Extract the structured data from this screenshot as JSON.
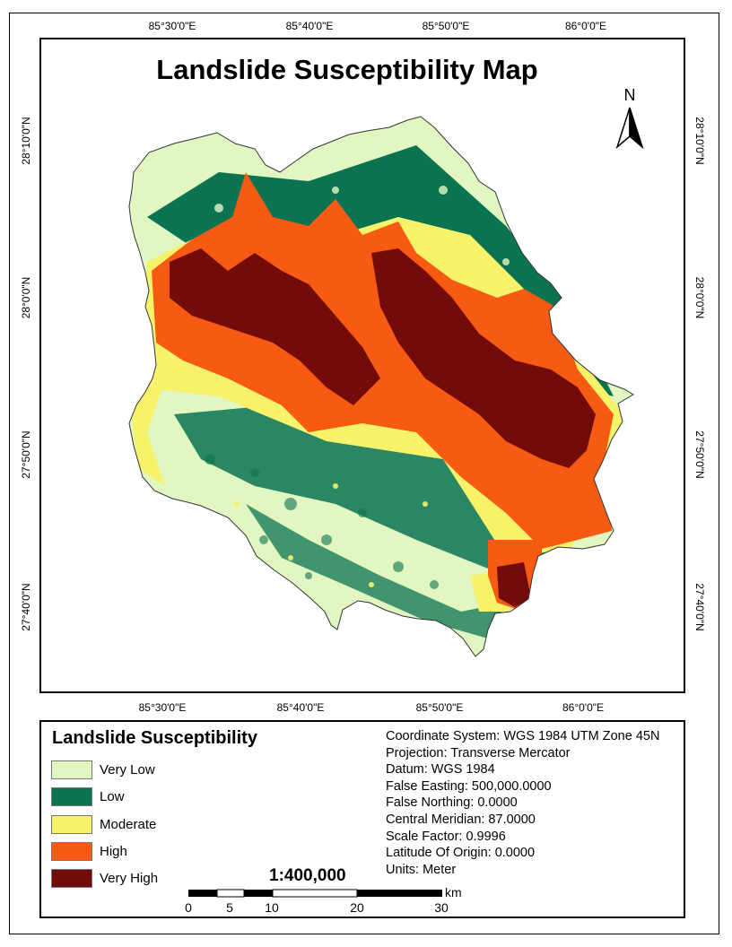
{
  "map": {
    "title": "Landslide Susceptibility Map",
    "north_label": "N",
    "lon_ticks_top": [
      "85°30'0\"E",
      "85°40'0\"E",
      "85°50'0\"E",
      "86°0'0\"E"
    ],
    "lon_ticks_bottom": [
      "85°30'0\"E",
      "85°40'0\"E",
      "85°50'0\"E",
      "86°0'0\"E"
    ],
    "lat_ticks_left": [
      "28°10'0\"N",
      "28°0'0\"N",
      "27°50'0\"N",
      "27°40'0\"N"
    ],
    "lat_ticks_right": [
      "28°10'0\"N",
      "28°0'0\"N",
      "27°50'0\"N",
      "27°40'0\"N"
    ]
  },
  "legend": {
    "title": "Landslide Susceptibility",
    "classes": [
      {
        "label": "Very Low",
        "color": "#e2f6c2"
      },
      {
        "label": "Low",
        "color": "#0a7352"
      },
      {
        "label": "Moderate",
        "color": "#f6f26a"
      },
      {
        "label": "High",
        "color": "#f75a12"
      },
      {
        "label": "Very High",
        "color": "#730c08"
      }
    ]
  },
  "projection_info": [
    "Coordinate System: WGS 1984 UTM Zone 45N",
    "Projection: Transverse Mercator",
    "Datum: WGS 1984",
    "False Easting: 500,000.0000",
    "False Northing: 0.0000",
    "Central Meridian: 87.0000",
    "Scale Factor: 0.9996",
    "Latitude Of Origin: 0.0000",
    "Units: Meter"
  ],
  "scale": {
    "ratio": "1:400,000",
    "unit": "km",
    "labels": [
      "0",
      "5",
      "10",
      "20",
      "30"
    ]
  }
}
